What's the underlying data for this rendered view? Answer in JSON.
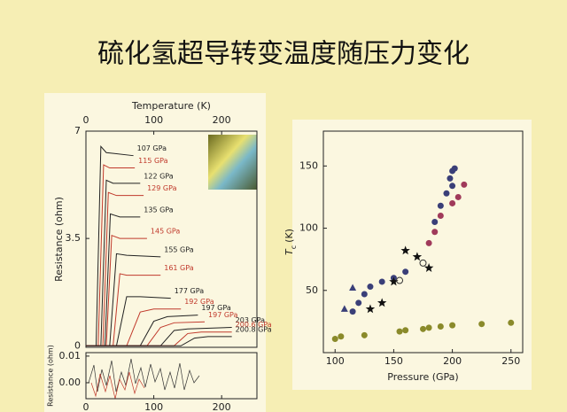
{
  "title": "硫化氢超导转变温度随压力变化",
  "chart_data": [
    {
      "type": "line",
      "xlabel": "Temperature (K)",
      "ylabel": "Resistance (ohm)",
      "xlim": [
        0,
        252
      ],
      "ylim": [
        -0.05,
        7
      ],
      "xticks": [
        0,
        100,
        200
      ],
      "yticks": [
        0,
        3.5,
        7
      ],
      "series": [
        {
          "name": "107 GPa",
          "color": "#222222",
          "x": [
            0,
            15,
            22,
            30,
            70
          ],
          "values": [
            0,
            0,
            6.5,
            6.3,
            6.2
          ]
        },
        {
          "name": "115 GPa",
          "color": "#c0392b",
          "x": [
            0,
            18,
            26,
            35,
            72
          ],
          "values": [
            0,
            0,
            5.9,
            5.8,
            5.8
          ]
        },
        {
          "name": "122 GPa",
          "color": "#222222",
          "x": [
            0,
            22,
            30,
            40,
            80
          ],
          "values": [
            0,
            0,
            5.4,
            5.3,
            5.3
          ]
        },
        {
          "name": "129 GPa",
          "color": "#c0392b",
          "x": [
            0,
            25,
            33,
            45,
            85
          ],
          "values": [
            0,
            0,
            5.0,
            4.9,
            4.9
          ]
        },
        {
          "name": "135 GPa",
          "color": "#222222",
          "x": [
            0,
            28,
            36,
            50,
            80
          ],
          "values": [
            0,
            0,
            4.3,
            4.2,
            4.2
          ]
        },
        {
          "name": "145 GPa",
          "color": "#c0392b",
          "x": [
            0,
            30,
            38,
            50,
            90
          ],
          "values": [
            0,
            0,
            3.6,
            3.5,
            3.5
          ]
        },
        {
          "name": "155 GPa",
          "color": "#222222",
          "x": [
            0,
            35,
            45,
            60,
            110
          ],
          "values": [
            0,
            0,
            3.0,
            2.95,
            2.9
          ]
        },
        {
          "name": "161 GPa",
          "color": "#c0392b",
          "x": [
            0,
            40,
            50,
            60,
            110
          ],
          "values": [
            0,
            0,
            2.35,
            2.3,
            2.3
          ]
        },
        {
          "name": "177 GPa",
          "color": "#222222",
          "x": [
            0,
            45,
            60,
            80,
            125
          ],
          "values": [
            0,
            0,
            1.6,
            1.6,
            1.55
          ]
        },
        {
          "name": "192 GPa",
          "color": "#c0392b",
          "x": [
            0,
            60,
            80,
            100,
            140
          ],
          "values": [
            0,
            0,
            1.1,
            1.2,
            1.2
          ]
        },
        {
          "name": "197 GPa",
          "color": "#222222",
          "x": [
            0,
            80,
            100,
            120,
            165
          ],
          "values": [
            0,
            0,
            0.8,
            0.95,
            1.0
          ]
        },
        {
          "name": "197 GPa",
          "color": "#c0392b",
          "x": [
            0,
            90,
            110,
            130,
            175
          ],
          "values": [
            0,
            0,
            0.6,
            0.75,
            0.78
          ]
        },
        {
          "name": "203 GPa",
          "color": "#222222",
          "x": [
            0,
            110,
            130,
            150,
            215
          ],
          "values": [
            0,
            0,
            0.5,
            0.55,
            0.6
          ]
        },
        {
          "name": "200.6 GPa",
          "color": "#c0392b",
          "x": [
            0,
            130,
            150,
            170,
            215
          ],
          "values": [
            0,
            0,
            0.4,
            0.45,
            0.45
          ]
        },
        {
          "name": "200.8 GPa",
          "color": "#222222",
          "x": [
            0,
            140,
            160,
            180,
            215
          ],
          "values": [
            0,
            0,
            0.25,
            0.3,
            0.3
          ]
        }
      ]
    },
    {
      "type": "inset",
      "ylabel": "Resistance (ohm)",
      "xlim": [
        0,
        252
      ],
      "ylim": [
        -0.006,
        0.0113
      ],
      "xticks": [
        0,
        100,
        200
      ],
      "yticks": [
        {
          "value": 0,
          "label": "0.00"
        },
        0.01
      ]
    },
    {
      "type": "scatter",
      "xlabel": "Pressure (GPa)",
      "ylabel": "T",
      "ylabel_sub": "c",
      "ylabel_unit": "(K)",
      "xlim": [
        90,
        260
      ],
      "ylim": [
        0,
        178
      ],
      "xticks": [
        100,
        150,
        200,
        250
      ],
      "yticks": [
        50,
        100,
        150
      ],
      "series": [
        {
          "marker": "circle",
          "color": "#3a3f78",
          "x": [
            115,
            120,
            125,
            130,
            140,
            150,
            160,
            185,
            190,
            195,
            198,
            200,
            202,
            200
          ],
          "values": [
            33,
            40,
            47,
            53,
            57,
            60,
            65,
            105,
            118,
            128,
            140,
            146,
            148,
            134
          ]
        },
        {
          "marker": "circle",
          "color": "#a03a5a",
          "x": [
            180,
            185,
            190,
            200,
            205,
            210
          ],
          "values": [
            88,
            97,
            110,
            120,
            125,
            135
          ]
        },
        {
          "marker": "star",
          "color": "#111111",
          "x": [
            130,
            140,
            150,
            160,
            170,
            180
          ],
          "values": [
            35,
            40,
            57,
            82,
            77,
            68
          ]
        },
        {
          "marker": "triangle",
          "color": "#3a3f78",
          "x": [
            108,
            115
          ],
          "values": [
            35,
            52
          ]
        },
        {
          "marker": "open-circle",
          "color": "#333333",
          "x": [
            155,
            175
          ],
          "values": [
            58,
            72
          ]
        },
        {
          "marker": "circle",
          "color": "#8a8a2a",
          "x": [
            100,
            105,
            125,
            155,
            160,
            175,
            180,
            190,
            200,
            225,
            250
          ],
          "values": [
            11,
            13,
            14,
            17,
            18,
            19,
            20,
            21,
            22,
            23,
            24
          ]
        }
      ]
    }
  ]
}
